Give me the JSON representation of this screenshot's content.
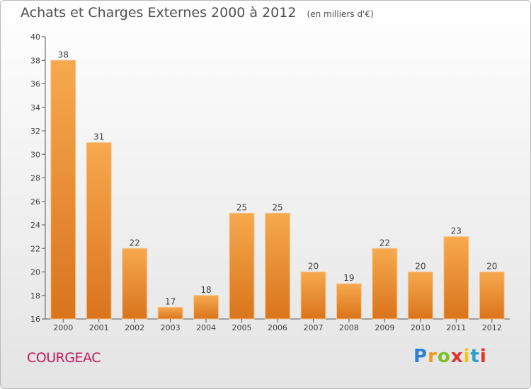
{
  "title": "Achats et Charges Externes 2000 à 2012",
  "subtitle": "(en milliers d'€)",
  "commune": "COURGEAC",
  "logo": {
    "letters": [
      "P",
      "r",
      "o",
      "x",
      "i",
      "t",
      "i"
    ],
    "colors": [
      "#2e7fd0",
      "#f29a1e",
      "#7bbf2a",
      "#e4322b",
      "#f2c51e",
      "#2e9fd0",
      "#e4322b"
    ]
  },
  "colors": {
    "bar_light": "#f7a94e",
    "bar_dark": "#d9741c",
    "title": "#505050",
    "commune": "#c2185b"
  },
  "chart_data": {
    "type": "bar",
    "title": "Achats et Charges Externes 2000 à 2012",
    "subtitle": "(en milliers d'€)",
    "categories": [
      "2000",
      "2001",
      "2002",
      "2003",
      "2004",
      "2005",
      "2006",
      "2007",
      "2008",
      "2009",
      "2010",
      "2011",
      "2012"
    ],
    "values": [
      38,
      31,
      22,
      17,
      18,
      25,
      25,
      20,
      19,
      22,
      20,
      23,
      20
    ],
    "ylim": [
      16,
      40
    ],
    "yticks": [
      16,
      18,
      20,
      22,
      24,
      26,
      28,
      30,
      32,
      34,
      36,
      38,
      40
    ],
    "grid": false,
    "legend": "none"
  }
}
